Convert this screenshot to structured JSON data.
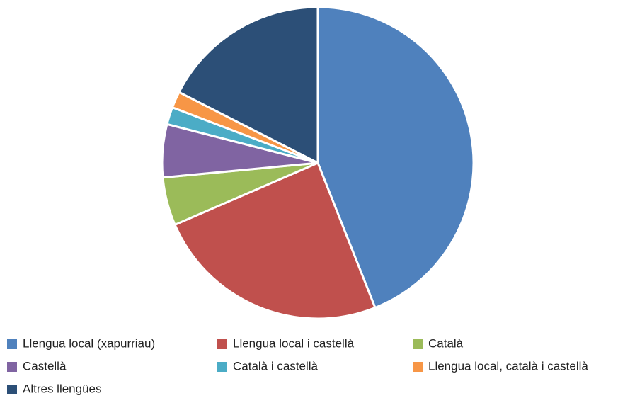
{
  "chart_data": {
    "type": "pie",
    "categories": [
      "Llengua local (xapurriau)",
      "Llengua local i castellà",
      "Català",
      "Castellà",
      "Català i castellà",
      "Llengua local, català i castellà",
      "Altres llengües"
    ],
    "values": [
      44,
      24.5,
      5,
      5.5,
      1.8,
      1.7,
      17.5
    ],
    "colors": [
      "#4f81bd",
      "#c0504d",
      "#9bbb59",
      "#8064a2",
      "#4bacc6",
      "#f79646",
      "#2c4f77"
    ],
    "legend": "bottom"
  }
}
